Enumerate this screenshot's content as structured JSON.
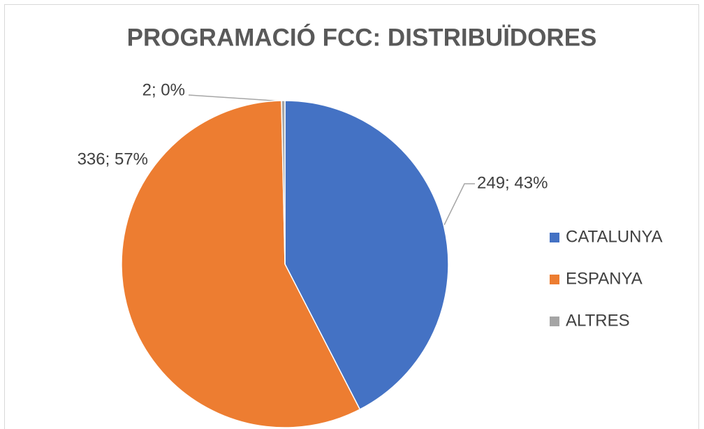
{
  "chart_data": {
    "type": "pie",
    "title": "PROGRAMACIÓ FCC: DISTRIBUÏDORES",
    "categories": [
      "CATALUNYA",
      "ESPANYA",
      "ALTRES"
    ],
    "values": [
      249,
      336,
      2
    ],
    "value_labels": [
      "249; 43%",
      "336; 57%",
      "2; 0%"
    ],
    "colors": [
      "#4472c4",
      "#ed7d31",
      "#a5a5a5"
    ],
    "legend": "right"
  }
}
